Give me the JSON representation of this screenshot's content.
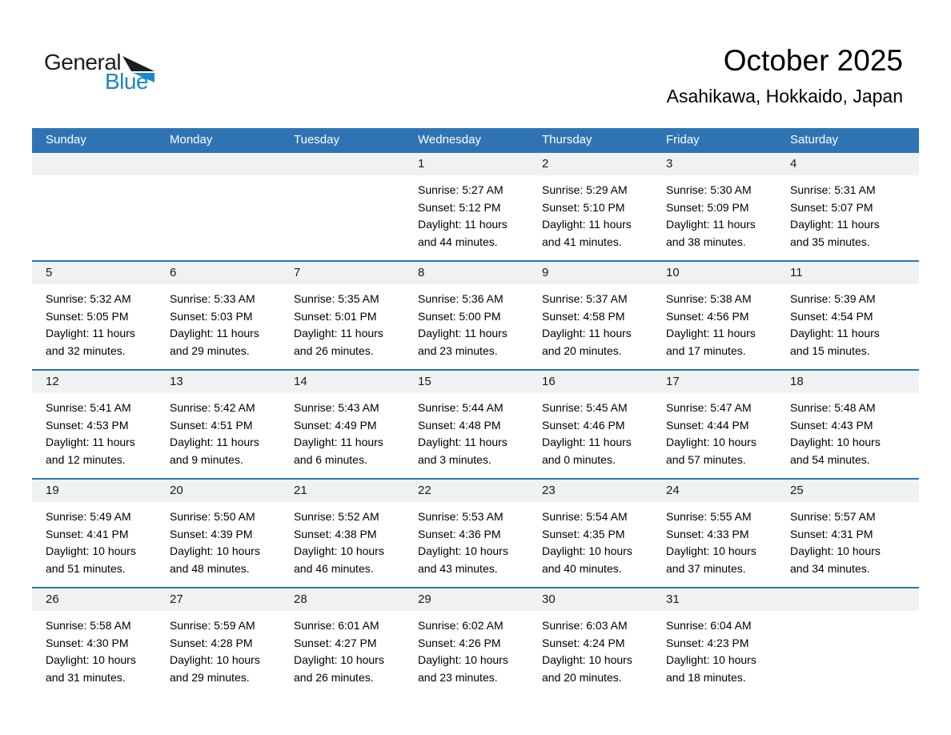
{
  "logo": {
    "text_dark": "General",
    "text_blue": "Blue"
  },
  "title": "October 2025",
  "subtitle": "Asahikawa, Hokkaido, Japan",
  "weekdays": [
    "Sunday",
    "Monday",
    "Tuesday",
    "Wednesday",
    "Thursday",
    "Friday",
    "Saturday"
  ],
  "colors": {
    "header_bg": "#2E74B5",
    "divider": "#2E74B5",
    "band_bg": "#F0F1F2",
    "logo_dark": "#1D1D1F",
    "logo_blue": "#1B87C9"
  },
  "weeks": [
    [
      null,
      null,
      null,
      {
        "day": "1",
        "sunrise": "Sunrise: 5:27 AM",
        "sunset": "Sunset: 5:12 PM",
        "daylight": "Daylight: 11 hours and 44 minutes."
      },
      {
        "day": "2",
        "sunrise": "Sunrise: 5:29 AM",
        "sunset": "Sunset: 5:10 PM",
        "daylight": "Daylight: 11 hours and 41 minutes."
      },
      {
        "day": "3",
        "sunrise": "Sunrise: 5:30 AM",
        "sunset": "Sunset: 5:09 PM",
        "daylight": "Daylight: 11 hours and 38 minutes."
      },
      {
        "day": "4",
        "sunrise": "Sunrise: 5:31 AM",
        "sunset": "Sunset: 5:07 PM",
        "daylight": "Daylight: 11 hours and 35 minutes."
      }
    ],
    [
      {
        "day": "5",
        "sunrise": "Sunrise: 5:32 AM",
        "sunset": "Sunset: 5:05 PM",
        "daylight": "Daylight: 11 hours and 32 minutes."
      },
      {
        "day": "6",
        "sunrise": "Sunrise: 5:33 AM",
        "sunset": "Sunset: 5:03 PM",
        "daylight": "Daylight: 11 hours and 29 minutes."
      },
      {
        "day": "7",
        "sunrise": "Sunrise: 5:35 AM",
        "sunset": "Sunset: 5:01 PM",
        "daylight": "Daylight: 11 hours and 26 minutes."
      },
      {
        "day": "8",
        "sunrise": "Sunrise: 5:36 AM",
        "sunset": "Sunset: 5:00 PM",
        "daylight": "Daylight: 11 hours and 23 minutes."
      },
      {
        "day": "9",
        "sunrise": "Sunrise: 5:37 AM",
        "sunset": "Sunset: 4:58 PM",
        "daylight": "Daylight: 11 hours and 20 minutes."
      },
      {
        "day": "10",
        "sunrise": "Sunrise: 5:38 AM",
        "sunset": "Sunset: 4:56 PM",
        "daylight": "Daylight: 11 hours and 17 minutes."
      },
      {
        "day": "11",
        "sunrise": "Sunrise: 5:39 AM",
        "sunset": "Sunset: 4:54 PM",
        "daylight": "Daylight: 11 hours and 15 minutes."
      }
    ],
    [
      {
        "day": "12",
        "sunrise": "Sunrise: 5:41 AM",
        "sunset": "Sunset: 4:53 PM",
        "daylight": "Daylight: 11 hours and 12 minutes."
      },
      {
        "day": "13",
        "sunrise": "Sunrise: 5:42 AM",
        "sunset": "Sunset: 4:51 PM",
        "daylight": "Daylight: 11 hours and 9 minutes."
      },
      {
        "day": "14",
        "sunrise": "Sunrise: 5:43 AM",
        "sunset": "Sunset: 4:49 PM",
        "daylight": "Daylight: 11 hours and 6 minutes."
      },
      {
        "day": "15",
        "sunrise": "Sunrise: 5:44 AM",
        "sunset": "Sunset: 4:48 PM",
        "daylight": "Daylight: 11 hours and 3 minutes."
      },
      {
        "day": "16",
        "sunrise": "Sunrise: 5:45 AM",
        "sunset": "Sunset: 4:46 PM",
        "daylight": "Daylight: 11 hours and 0 minutes."
      },
      {
        "day": "17",
        "sunrise": "Sunrise: 5:47 AM",
        "sunset": "Sunset: 4:44 PM",
        "daylight": "Daylight: 10 hours and 57 minutes."
      },
      {
        "day": "18",
        "sunrise": "Sunrise: 5:48 AM",
        "sunset": "Sunset: 4:43 PM",
        "daylight": "Daylight: 10 hours and 54 minutes."
      }
    ],
    [
      {
        "day": "19",
        "sunrise": "Sunrise: 5:49 AM",
        "sunset": "Sunset: 4:41 PM",
        "daylight": "Daylight: 10 hours and 51 minutes."
      },
      {
        "day": "20",
        "sunrise": "Sunrise: 5:50 AM",
        "sunset": "Sunset: 4:39 PM",
        "daylight": "Daylight: 10 hours and 48 minutes."
      },
      {
        "day": "21",
        "sunrise": "Sunrise: 5:52 AM",
        "sunset": "Sunset: 4:38 PM",
        "daylight": "Daylight: 10 hours and 46 minutes."
      },
      {
        "day": "22",
        "sunrise": "Sunrise: 5:53 AM",
        "sunset": "Sunset: 4:36 PM",
        "daylight": "Daylight: 10 hours and 43 minutes."
      },
      {
        "day": "23",
        "sunrise": "Sunrise: 5:54 AM",
        "sunset": "Sunset: 4:35 PM",
        "daylight": "Daylight: 10 hours and 40 minutes."
      },
      {
        "day": "24",
        "sunrise": "Sunrise: 5:55 AM",
        "sunset": "Sunset: 4:33 PM",
        "daylight": "Daylight: 10 hours and 37 minutes."
      },
      {
        "day": "25",
        "sunrise": "Sunrise: 5:57 AM",
        "sunset": "Sunset: 4:31 PM",
        "daylight": "Daylight: 10 hours and 34 minutes."
      }
    ],
    [
      {
        "day": "26",
        "sunrise": "Sunrise: 5:58 AM",
        "sunset": "Sunset: 4:30 PM",
        "daylight": "Daylight: 10 hours and 31 minutes."
      },
      {
        "day": "27",
        "sunrise": "Sunrise: 5:59 AM",
        "sunset": "Sunset: 4:28 PM",
        "daylight": "Daylight: 10 hours and 29 minutes."
      },
      {
        "day": "28",
        "sunrise": "Sunrise: 6:01 AM",
        "sunset": "Sunset: 4:27 PM",
        "daylight": "Daylight: 10 hours and 26 minutes."
      },
      {
        "day": "29",
        "sunrise": "Sunrise: 6:02 AM",
        "sunset": "Sunset: 4:26 PM",
        "daylight": "Daylight: 10 hours and 23 minutes."
      },
      {
        "day": "30",
        "sunrise": "Sunrise: 6:03 AM",
        "sunset": "Sunset: 4:24 PM",
        "daylight": "Daylight: 10 hours and 20 minutes."
      },
      {
        "day": "31",
        "sunrise": "Sunrise: 6:04 AM",
        "sunset": "Sunset: 4:23 PM",
        "daylight": "Daylight: 10 hours and 18 minutes."
      },
      null
    ]
  ]
}
